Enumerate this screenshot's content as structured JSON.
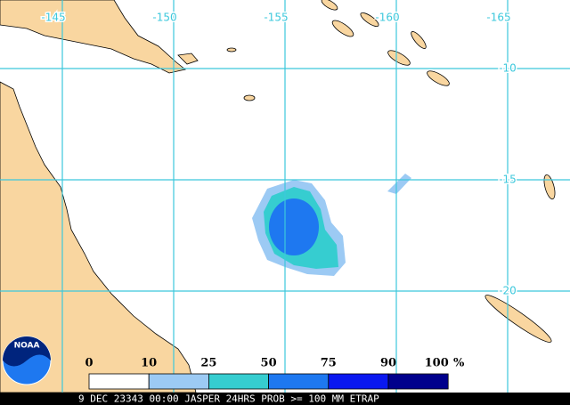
{
  "map": {
    "longitudes": [
      -145,
      -150,
      -155,
      -160,
      -165
    ],
    "latitudes": [
      -10,
      -15,
      -20
    ],
    "legend": {
      "labels": [
        0,
        10,
        25,
        50,
        75,
        90,
        100
      ],
      "unit": "%",
      "colors": [
        "#ffffff",
        "#9ccaf4",
        "#36cdd0",
        "#1e78f0",
        "#0a18f0",
        "#00008c"
      ]
    },
    "logo": "NOAA",
    "footer": "9 DEC 23343 00:00 JASPER 24HRS PROB >= 100 MM ETRAP"
  }
}
